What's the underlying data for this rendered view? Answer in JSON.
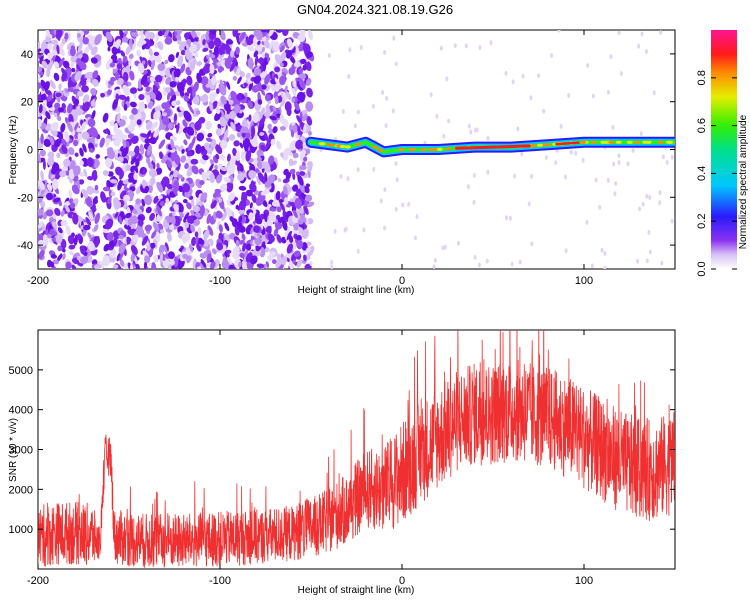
{
  "title": "GN04.2024.321.08.19.G26",
  "chart_data": [
    {
      "type": "heatmap",
      "xlabel": "Height of straight line (km)",
      "ylabel": "Frequency (Hz)",
      "xlim": [
        -200,
        150
      ],
      "ylim": [
        -50,
        50
      ],
      "xticks": [
        -200,
        -100,
        0,
        100
      ],
      "yticks": [
        -40,
        -20,
        0,
        20,
        40
      ],
      "colorbar": {
        "label": "Normalized spectral amplitude",
        "range": [
          0,
          1
        ],
        "ticks": [
          0.0,
          0.2,
          0.4,
          0.6,
          0.8
        ]
      },
      "ridge": [
        {
          "x": -50,
          "y": 3
        },
        {
          "x": -40,
          "y": 2
        },
        {
          "x": -30,
          "y": 1
        },
        {
          "x": -20,
          "y": 3
        },
        {
          "x": -10,
          "y": -1
        },
        {
          "x": 0,
          "y": 0
        },
        {
          "x": 20,
          "y": 0
        },
        {
          "x": 40,
          "y": 1
        },
        {
          "x": 60,
          "y": 1
        },
        {
          "x": 80,
          "y": 2
        },
        {
          "x": 100,
          "y": 3
        },
        {
          "x": 120,
          "y": 3
        },
        {
          "x": 150,
          "y": 3
        }
      ],
      "ridge_peak_amplitude": {
        "x_from": 30,
        "x_to": 70,
        "value": 0.9
      }
    },
    {
      "type": "line",
      "xlabel": "Height of straight line (km)",
      "ylabel": "SNR (10 * v/v)",
      "xlim": [
        -200,
        150
      ],
      "ylim": [
        0,
        6000
      ],
      "xticks": [
        -200,
        -100,
        0,
        100
      ],
      "yticks": [
        1000,
        2000,
        3000,
        4000,
        5000
      ],
      "color": "#f03030",
      "series": [
        {
          "x": [
            -200,
            -190,
            -180,
            -170,
            -166,
            -163,
            -160,
            -158,
            -150,
            -140,
            -120,
            -100,
            -80,
            -60,
            -45,
            -30,
            -20,
            -10,
            0,
            10,
            20,
            30,
            40,
            50,
            60,
            70,
            80,
            90,
            100,
            110,
            120,
            130,
            140,
            150
          ],
          "y": [
            800,
            900,
            900,
            850,
            600,
            2900,
            2800,
            800,
            750,
            700,
            700,
            750,
            800,
            900,
            1100,
            1500,
            2000,
            2000,
            2400,
            2900,
            3300,
            3700,
            3900,
            3900,
            4000,
            3900,
            3800,
            3600,
            3300,
            3000,
            2700,
            2500,
            2500,
            2700
          ],
          "spread": [
            800,
            800,
            800,
            800,
            400,
            500,
            500,
            700,
            700,
            700,
            700,
            700,
            700,
            700,
            800,
            900,
            1000,
            1100,
            1300,
            1300,
            1300,
            1300,
            1300,
            1300,
            1300,
            1300,
            1300,
            1300,
            1300,
            1300,
            1300,
            1300,
            1300,
            1300
          ]
        }
      ]
    }
  ]
}
